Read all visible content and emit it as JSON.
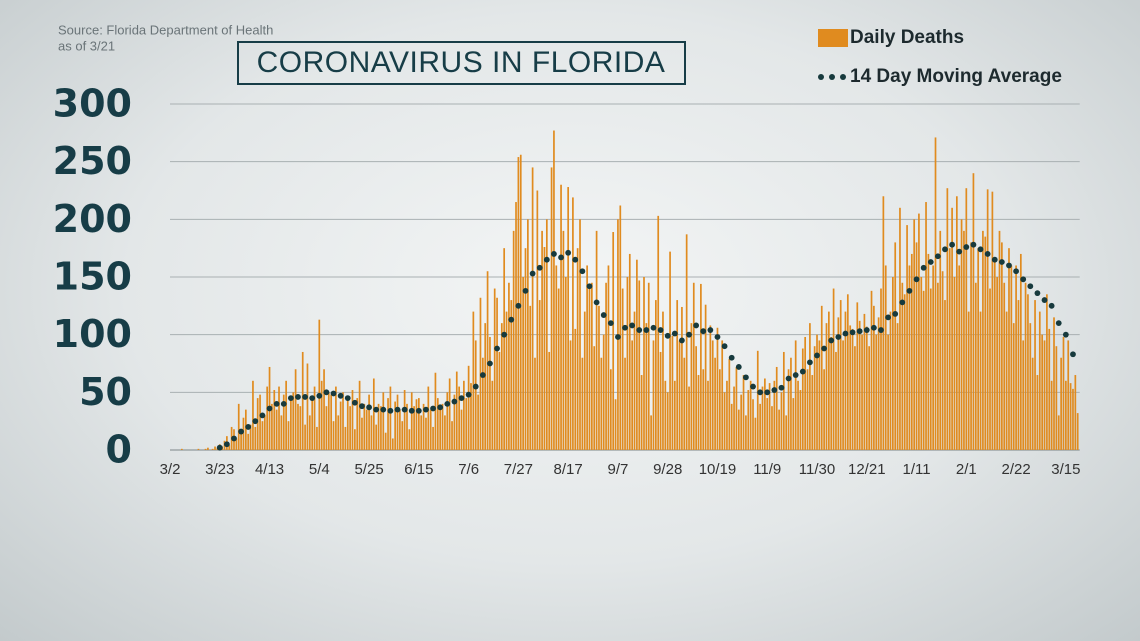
{
  "chart_data": {
    "type": "bar",
    "title": "CORONAVIRUS IN FLORIDA",
    "source": "Source: Florida Department of Health",
    "date_note": "as of 3/21",
    "legend": "top-right",
    "grid": true,
    "ylim": [
      0,
      300
    ],
    "yticks": [
      0,
      50,
      100,
      150,
      200,
      250,
      300
    ],
    "categories": [
      "3/2",
      null,
      null,
      null,
      null,
      null,
      null,
      null,
      null,
      null,
      null,
      null,
      null,
      null,
      null,
      null,
      null,
      null,
      null,
      null,
      null,
      "3/23",
      null,
      null,
      null,
      null,
      null,
      null,
      null,
      null,
      null,
      null,
      null,
      null,
      null,
      null,
      null,
      null,
      null,
      null,
      null,
      null,
      "4/13",
      null,
      null,
      null,
      null,
      null,
      null,
      null,
      null,
      null,
      null,
      null,
      null,
      null,
      null,
      null,
      null,
      null,
      null,
      null,
      null,
      "5/4",
      null,
      null,
      null,
      null,
      null,
      null,
      null,
      null,
      null,
      null,
      null,
      null,
      null,
      null,
      null,
      null,
      null,
      null,
      null,
      null,
      "5/25",
      null,
      null,
      null,
      null,
      null,
      null,
      null,
      null,
      null,
      null,
      null,
      null,
      null,
      null,
      null,
      null,
      null,
      null,
      null,
      null,
      "6/15",
      null,
      null,
      null,
      null,
      null,
      null,
      null,
      null,
      null,
      null,
      null,
      null,
      null,
      null,
      null,
      null,
      null,
      null,
      null,
      null,
      "7/6",
      null,
      null,
      null,
      null,
      null,
      null,
      null,
      null,
      null,
      null,
      null,
      null,
      null,
      null,
      null,
      null,
      null,
      null,
      null,
      null,
      "7/27",
      null,
      null,
      null,
      null,
      null,
      null,
      null,
      null,
      null,
      null,
      null,
      null,
      null,
      null,
      null,
      null,
      null,
      null,
      null,
      null,
      "8/17",
      null,
      null,
      null,
      null,
      null,
      null,
      null,
      null,
      null,
      null,
      null,
      null,
      null,
      null,
      null,
      null,
      null,
      null,
      null,
      null,
      "9/7",
      null,
      null,
      null,
      null,
      null,
      null,
      null,
      null,
      null,
      null,
      null,
      null,
      null,
      null,
      null,
      null,
      null,
      null,
      null,
      null,
      "9/28",
      null,
      null,
      null,
      null,
      null,
      null,
      null,
      null,
      null,
      null,
      null,
      null,
      null,
      null,
      null,
      null,
      null,
      null,
      null,
      null,
      "10/19",
      null,
      null,
      null,
      null,
      null,
      null,
      null,
      null,
      null,
      null,
      null,
      null,
      null,
      null,
      null,
      null,
      null,
      null,
      null,
      null,
      "11/9",
      null,
      null,
      null,
      null,
      null,
      null,
      null,
      null,
      null,
      null,
      null,
      null,
      null,
      null,
      null,
      null,
      null,
      null,
      null,
      null,
      "11/30",
      null,
      null,
      null,
      null,
      null,
      null,
      null,
      null,
      null,
      null,
      null,
      null,
      null,
      null,
      null,
      null,
      null,
      null,
      null,
      null,
      "12/21",
      null,
      null,
      null,
      null,
      null,
      null,
      null,
      null,
      null,
      null,
      null,
      null,
      null,
      null,
      null,
      null,
      null,
      null,
      null,
      null,
      "1/11",
      null,
      null,
      null,
      null,
      null,
      null,
      null,
      null,
      null,
      null,
      null,
      null,
      null,
      null,
      null,
      null,
      null,
      null,
      null,
      null,
      "2/1",
      null,
      null,
      null,
      null,
      null,
      null,
      null,
      null,
      null,
      null,
      null,
      null,
      null,
      null,
      null,
      null,
      null,
      null,
      null,
      null,
      "2/22",
      null,
      null,
      null,
      null,
      null,
      null,
      null,
      null,
      null,
      null,
      null,
      null,
      null,
      null,
      null,
      null,
      null,
      null,
      null,
      null,
      "3/15",
      null,
      null,
      null,
      null,
      null
    ],
    "series": [
      {
        "name": "Daily Deaths",
        "color": "#e08b1f",
        "mark": "bar",
        "values": [
          0,
          0,
          0,
          0,
          0,
          1,
          0,
          0,
          0,
          0,
          0,
          0,
          1,
          0,
          0,
          1,
          2,
          0,
          1,
          3,
          2,
          5,
          3,
          8,
          12,
          4,
          20,
          18,
          10,
          40,
          15,
          28,
          35,
          14,
          22,
          60,
          20,
          45,
          48,
          25,
          30,
          55,
          72,
          40,
          52,
          35,
          55,
          30,
          48,
          60,
          25,
          45,
          50,
          70,
          40,
          38,
          85,
          22,
          75,
          30,
          45,
          55,
          20,
          113,
          60,
          70,
          38,
          50,
          48,
          25,
          55,
          30,
          42,
          50,
          20,
          45,
          38,
          52,
          18,
          45,
          60,
          28,
          40,
          35,
          48,
          30,
          62,
          22,
          40,
          38,
          50,
          15,
          45,
          55,
          10,
          42,
          48,
          35,
          25,
          52,
          40,
          18,
          50,
          38,
          44,
          45,
          30,
          40,
          28,
          55,
          35,
          20,
          67,
          45,
          38,
          40,
          30,
          50,
          62,
          25,
          48,
          68,
          55,
          35,
          60,
          45,
          73,
          58,
          120,
          95,
          48,
          132,
          80,
          110,
          155,
          98,
          60,
          140,
          132,
          85,
          110,
          175,
          120,
          145,
          130,
          190,
          215,
          254,
          256,
          150,
          175,
          200,
          125,
          245,
          80,
          225,
          130,
          190,
          176,
          200,
          85,
          245,
          277,
          160,
          140,
          230,
          190,
          150,
          228,
          95,
          219,
          105,
          175,
          200,
          80,
          120,
          160,
          140,
          145,
          90,
          190,
          125,
          80,
          100,
          145,
          160,
          70,
          189,
          44,
          200,
          212,
          140,
          80,
          150,
          170,
          95,
          120,
          165,
          147,
          65,
          150,
          110,
          145,
          30,
          95,
          130,
          203,
          85,
          120,
          60,
          50,
          172,
          99,
          60,
          130,
          95,
          124,
          80,
          187,
          55,
          110,
          145,
          90,
          65,
          144,
          70,
          126,
          60,
          108,
          95,
          80,
          106,
          70,
          95,
          50,
          60,
          79,
          40,
          55,
          72,
          35,
          48,
          65,
          30,
          52,
          60,
          44,
          28,
          86,
          40,
          55,
          62,
          45,
          58,
          38,
          60,
          72,
          35,
          50,
          85,
          30,
          70,
          80,
          45,
          95,
          60,
          52,
          88,
          98,
          70,
          110,
          65,
          90,
          100,
          95,
          125,
          70,
          110,
          120,
          98,
          140,
          85,
          115,
          130,
          95,
          120,
          135,
          108,
          105,
          90,
          128,
          112,
          100,
          118,
          107,
          90,
          138,
          125,
          100,
          115,
          140,
          220,
          160,
          100,
          120,
          150,
          180,
          110,
          210,
          145,
          135,
          195,
          160,
          170,
          200,
          180,
          205,
          150,
          138,
          215,
          170,
          140,
          160,
          271,
          145,
          190,
          155,
          130,
          227,
          175,
          210,
          150,
          220,
          160,
          200,
          190,
          227,
          120,
          180,
          240,
          145,
          175,
          120,
          190,
          185,
          226,
          140,
          224,
          165,
          150,
          190,
          180,
          145,
          120,
          175,
          160,
          110,
          160,
          130,
          170,
          95,
          145,
          135,
          110,
          80,
          130,
          65,
          120,
          100,
          95,
          135,
          105,
          60,
          115,
          90,
          30,
          80,
          98,
          60,
          95,
          58,
          53,
          65,
          32
        ]
      },
      {
        "name": "14 Day Moving Average",
        "color": "#173a3d",
        "mark": "dot",
        "values": [
          null,
          null,
          null,
          null,
          null,
          null,
          null,
          null,
          null,
          null,
          null,
          null,
          null,
          null,
          null,
          null,
          null,
          null,
          null,
          null,
          null,
          2,
          null,
          null,
          5,
          null,
          null,
          10,
          null,
          null,
          16,
          null,
          null,
          20,
          null,
          null,
          25,
          null,
          null,
          30,
          null,
          null,
          36,
          null,
          null,
          40,
          null,
          null,
          40,
          null,
          null,
          45,
          null,
          null,
          46,
          null,
          null,
          46,
          null,
          null,
          45,
          null,
          null,
          47,
          null,
          null,
          50,
          null,
          null,
          49,
          null,
          null,
          47,
          null,
          null,
          45,
          null,
          null,
          41,
          null,
          null,
          38,
          null,
          null,
          37,
          null,
          null,
          35,
          null,
          null,
          35,
          null,
          null,
          34,
          null,
          null,
          35,
          null,
          null,
          35,
          null,
          null,
          34,
          null,
          null,
          34,
          null,
          null,
          35,
          null,
          null,
          36,
          null,
          null,
          37,
          null,
          null,
          40,
          null,
          null,
          42,
          null,
          null,
          45,
          null,
          null,
          48,
          null,
          null,
          55,
          null,
          null,
          65,
          null,
          null,
          75,
          null,
          null,
          88,
          null,
          null,
          100,
          null,
          null,
          113,
          null,
          null,
          125,
          null,
          null,
          138,
          null,
          null,
          153,
          null,
          null,
          158,
          null,
          null,
          165,
          null,
          null,
          170,
          null,
          null,
          167,
          null,
          null,
          171,
          null,
          null,
          165,
          null,
          null,
          155,
          null,
          null,
          142,
          null,
          null,
          128,
          null,
          null,
          117,
          null,
          null,
          110,
          null,
          null,
          98,
          null,
          null,
          106,
          null,
          null,
          108,
          null,
          null,
          104,
          null,
          null,
          104,
          null,
          null,
          106,
          null,
          null,
          104,
          null,
          null,
          99,
          null,
          null,
          101,
          null,
          null,
          95,
          null,
          null,
          100,
          null,
          null,
          108,
          null,
          null,
          103,
          null,
          null,
          104,
          null,
          null,
          98,
          null,
          null,
          90,
          null,
          null,
          80,
          null,
          null,
          72,
          null,
          null,
          63,
          null,
          null,
          55,
          null,
          null,
          50,
          null,
          null,
          50,
          null,
          null,
          52,
          null,
          null,
          54,
          null,
          null,
          62,
          null,
          null,
          65,
          null,
          null,
          68,
          null,
          null,
          76,
          null,
          null,
          82,
          null,
          null,
          88,
          null,
          null,
          95,
          null,
          null,
          98,
          null,
          null,
          101,
          null,
          null,
          102,
          null,
          null,
          103,
          null,
          null,
          104,
          null,
          null,
          106,
          null,
          null,
          104,
          null,
          null,
          115,
          null,
          null,
          118,
          null,
          null,
          128,
          null,
          null,
          138,
          null,
          null,
          148,
          null,
          null,
          158,
          null,
          null,
          163,
          null,
          null,
          168,
          null,
          null,
          174,
          null,
          null,
          178,
          null,
          null,
          172,
          null,
          null,
          176,
          null,
          null,
          178,
          null,
          null,
          174,
          null,
          null,
          170,
          null,
          null,
          165,
          null,
          null,
          163,
          null,
          null,
          160,
          null,
          null,
          155,
          null,
          null,
          148,
          null,
          null,
          142,
          null,
          null,
          136,
          null,
          null,
          130,
          null,
          null,
          125,
          null,
          null,
          110,
          null,
          null,
          100,
          null,
          null,
          83,
          null,
          null
        ]
      }
    ]
  }
}
